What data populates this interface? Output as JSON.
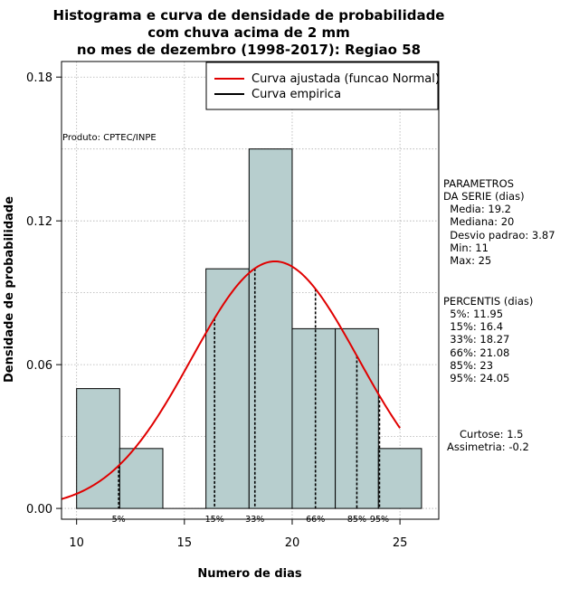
{
  "chart_data": {
    "type": "bar",
    "title_lines": [
      "Histograma e curva de densidade de probabilidade",
      "com chuva acima de 2 mm",
      "no mes de dezembro (1998-2017): Regiao 58"
    ],
    "xlabel": "Numero de dias",
    "ylabel": "Densidade de probabilidade",
    "xlim": [
      9.3,
      26.8
    ],
    "ylim": [
      -0.0045,
      0.1865
    ],
    "x_ticks": [
      10,
      15,
      20,
      25
    ],
    "y_ticks": [
      0.0,
      0.06,
      0.12,
      0.18
    ],
    "y_tick_labels": [
      "0.00",
      "0.06",
      "0.12",
      "0.18"
    ],
    "grid": true,
    "bins": [
      {
        "x0": 10,
        "x1": 12,
        "density": 0.05
      },
      {
        "x0": 12,
        "x1": 14,
        "density": 0.025
      },
      {
        "x0": 14,
        "x1": 16,
        "density": 0.0
      },
      {
        "x0": 16,
        "x1": 18,
        "density": 0.1
      },
      {
        "x0": 18,
        "x1": 20,
        "density": 0.15
      },
      {
        "x0": 20,
        "x1": 22,
        "density": 0.075
      },
      {
        "x0": 22,
        "x1": 24,
        "density": 0.075
      },
      {
        "x0": 24,
        "x1": 26,
        "density": 0.025
      }
    ],
    "bar_color": "#b7cece",
    "series": [
      {
        "name": "Curva ajustada (funcao Normal)",
        "color": "#e00000",
        "distribution": "normal",
        "mean": 19.2,
        "sd": 3.87,
        "x_range": [
          9.3,
          25
        ]
      },
      {
        "name": "Curva empirica",
        "color": "#000000"
      }
    ],
    "legend_position": "top-right",
    "percentile_lines": [
      {
        "label": "5%",
        "x": 11.95
      },
      {
        "label": "15%",
        "x": 16.4
      },
      {
        "label": "33%",
        "x": 18.27
      },
      {
        "label": "66%",
        "x": 21.08
      },
      {
        "label": "85%",
        "x": 23
      },
      {
        "label": "95%",
        "x": 24.05
      }
    ],
    "annotations": {
      "produto": "Produto: CPTEC/INPE",
      "parametros": [
        "PARAMETROS",
        "DA SERIE (dias)",
        "  Media: 19.2",
        "  Mediana: 20",
        "  Desvio padrao: 3.87",
        "  Min: 11",
        "  Max: 25"
      ],
      "percentis": [
        "PERCENTIS (dias)",
        "  5%: 11.95",
        "  15%: 16.4",
        "  33%: 18.27",
        "  66%: 21.08",
        "  85%: 23",
        "  95%: 24.05"
      ],
      "curtose": "Curtose: 1.5",
      "assimetria": "Assimetria: -0.2"
    }
  }
}
